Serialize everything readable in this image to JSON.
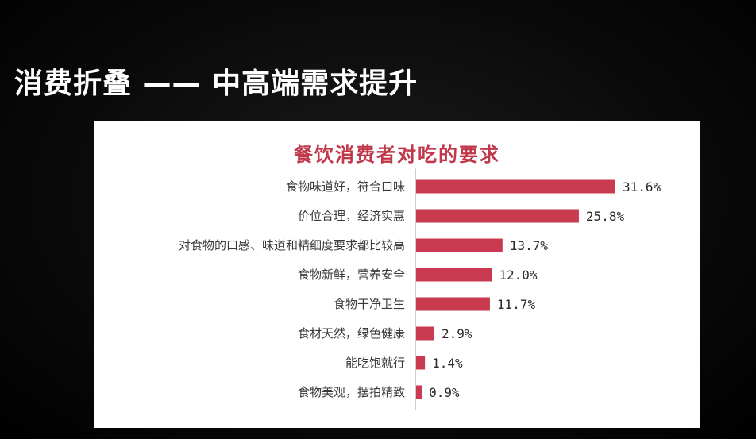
{
  "slide": {
    "title": "消费折叠 —— 中高端需求提升"
  },
  "chart_data": {
    "type": "bar",
    "orientation": "horizontal",
    "title": "餐饮消费者对吃的要求",
    "categories": [
      "食物味道好，符合口味",
      "价位合理，经济实惠",
      "对食物的口感、味道和精细度要求都比较高",
      "食物新鲜，营养安全",
      "食物干净卫生",
      "食材天然，绿色健康",
      "能吃饱就行",
      "食物美观，摆拍精致"
    ],
    "values": [
      31.6,
      25.8,
      13.7,
      12.0,
      11.7,
      2.9,
      1.4,
      0.9
    ],
    "value_labels": [
      "31.6%",
      "25.8%",
      "13.7%",
      "12.0%",
      "11.7%",
      "2.9%",
      "1.4%",
      "0.9%"
    ],
    "unit": "%",
    "bar_color": "#c9394f",
    "xlim": [
      0,
      31.6
    ],
    "grid": false,
    "legend": "none"
  }
}
